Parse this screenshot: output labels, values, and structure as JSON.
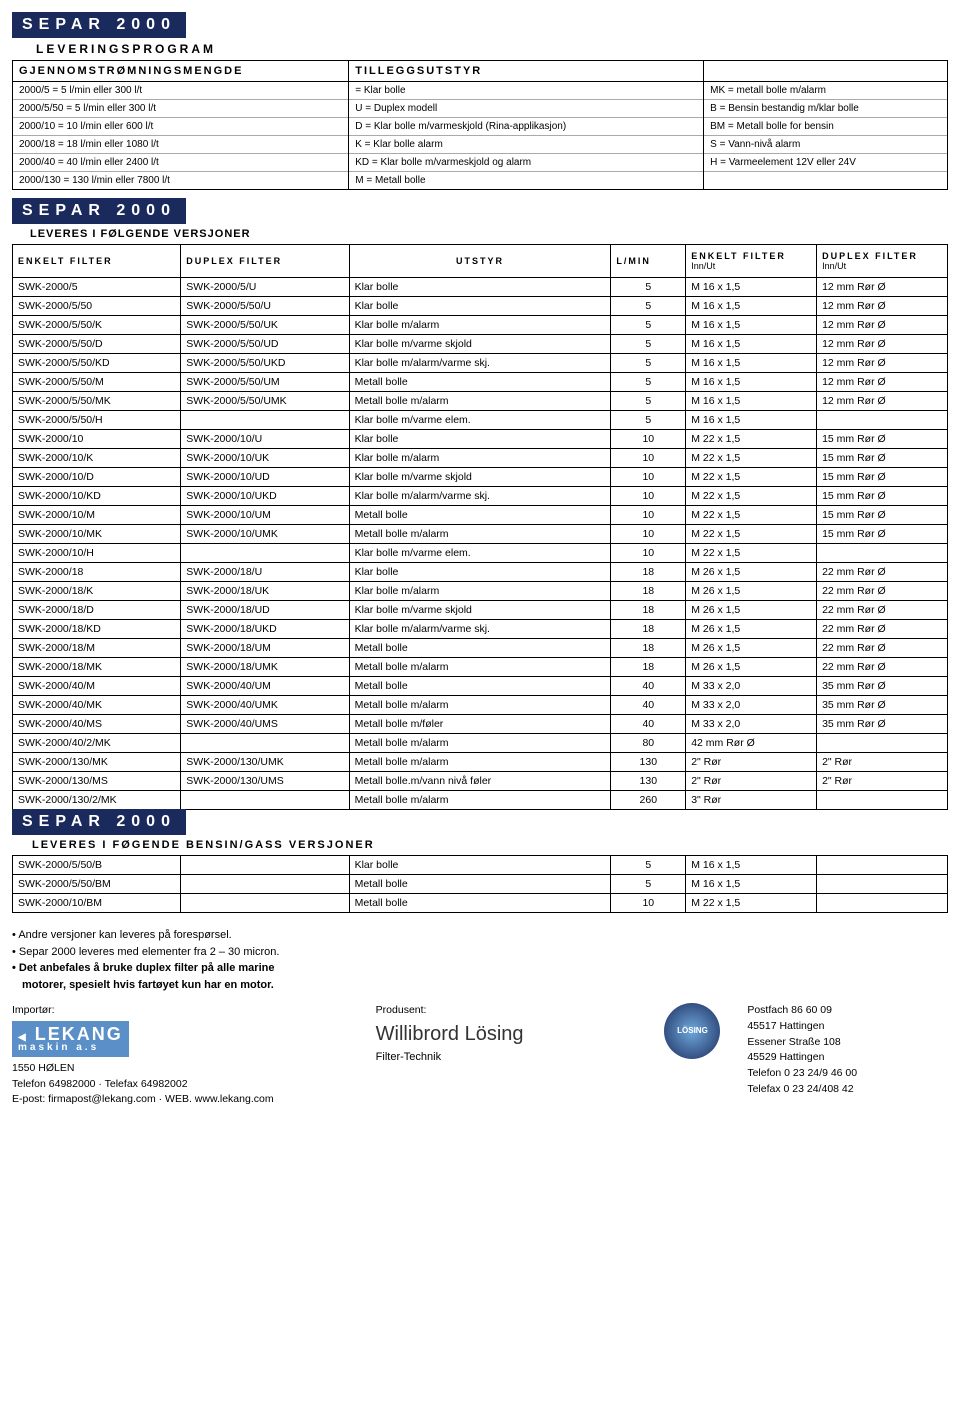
{
  "brand": "SEPAR 2000",
  "colors": {
    "navy": "#1a2a5c",
    "logo_blue": "#5a8fc7"
  },
  "top": {
    "col1": {
      "hdr": "GJENNOMSTRØMNINGSMENGDE",
      "rows": [
        "2000/5    =   5 l/min eller   300 l/t",
        "2000/5/50 =   5 l/min eller   300 l/t",
        "2000/10   =  10 l/min eller   600 l/t",
        "2000/18   =  18 l/min eller  1080 l/t",
        "2000/40   =  40 l/min eller  2400 l/t",
        "2000/130  = 130 l/min eller  7800 l/t"
      ]
    },
    "col2": {
      "hdr": "TILLEGGSUTSTYR",
      "rows": [
        "= Klar bolle",
        "U  = Duplex modell",
        "D  = Klar bolle m/varmeskjold (Rina-applikasjon)",
        "K  = Klar bolle alarm",
        "KD = Klar bolle m/varmeskjold og alarm",
        "M  = Metall bolle"
      ]
    },
    "col3": {
      "hdr": "",
      "rows": [
        "MK = metall bolle m/alarm",
        "B  = Bensin bestandig m/klar bolle",
        "BM = Metall bolle for bensin",
        "S  = Vann-nivå alarm",
        "H  = Varmeelement 12V eller 24V",
        ""
      ]
    }
  },
  "leveringsprogram": "LEVERINGSPROGRAM",
  "versjoner": "LEVERES I FØLGENDE VERSJONER",
  "headers": {
    "c1": "ENKELT FILTER",
    "c2": "DUPLEX FILTER",
    "c3": "UTSTYR",
    "c4": "L/MIN",
    "c5": "ENKELT FILTER",
    "c5s": "Inn/Ut",
    "c6": "DUPLEX FILTER",
    "c6s": "Inn/Ut"
  },
  "rows": [
    [
      "SWK-2000/5",
      "SWK-2000/5/U",
      "Klar bolle",
      "5",
      "M 16 x 1,5",
      "12 mm Rør Ø"
    ],
    [
      "SWK-2000/5/50",
      "SWK-2000/5/50/U",
      "Klar bolle",
      "5",
      "M 16 x 1,5",
      "12 mm Rør Ø"
    ],
    [
      "SWK-2000/5/50/K",
      "SWK-2000/5/50/UK",
      "Klar bolle m/alarm",
      "5",
      "M 16 x 1,5",
      "12 mm Rør Ø"
    ],
    [
      "SWK-2000/5/50/D",
      "SWK-2000/5/50/UD",
      "Klar bolle m/varme skjold",
      "5",
      "M 16 x 1,5",
      "12 mm Rør Ø"
    ],
    [
      "SWK-2000/5/50/KD",
      "SWK-2000/5/50/UKD",
      "Klar bolle m/alarm/varme skj.",
      "5",
      "M 16 x 1,5",
      "12 mm Rør Ø"
    ],
    [
      "SWK-2000/5/50/M",
      "SWK-2000/5/50/UM",
      "Metall bolle",
      "5",
      "M 16 x 1,5",
      "12 mm Rør Ø"
    ],
    [
      "SWK-2000/5/50/MK",
      "SWK-2000/5/50/UMK",
      "Metall bolle m/alarm",
      "5",
      "M 16 x 1,5",
      "12 mm Rør Ø"
    ],
    [
      "SWK-2000/5/50/H",
      "",
      "Klar bolle m/varme elem.",
      "5",
      "M 16 x 1,5",
      ""
    ],
    [
      "SWK-2000/10",
      "SWK-2000/10/U",
      "Klar bolle",
      "10",
      "M 22 x 1,5",
      "15 mm Rør Ø"
    ],
    [
      "SWK-2000/10/K",
      "SWK-2000/10/UK",
      "Klar bolle m/alarm",
      "10",
      "M 22 x 1,5",
      "15 mm Rør Ø"
    ],
    [
      "SWK-2000/10/D",
      "SWK-2000/10/UD",
      "Klar bolle m/varme skjold",
      "10",
      "M 22 x 1,5",
      "15 mm Rør Ø"
    ],
    [
      "SWK-2000/10/KD",
      "SWK-2000/10/UKD",
      "Klar bolle m/alarm/varme skj.",
      "10",
      "M 22 x 1,5",
      "15 mm Rør Ø"
    ],
    [
      "SWK-2000/10/M",
      "SWK-2000/10/UM",
      "Metall bolle",
      "10",
      "M 22 x 1,5",
      "15 mm Rør Ø"
    ],
    [
      "SWK-2000/10/MK",
      "SWK-2000/10/UMK",
      "Metall bolle m/alarm",
      "10",
      "M 22 x 1,5",
      "15 mm Rør Ø"
    ],
    [
      "SWK-2000/10/H",
      "",
      "Klar bolle m/varme elem.",
      "10",
      "M 22 x 1,5",
      ""
    ],
    [
      "SWK-2000/18",
      "SWK-2000/18/U",
      "Klar bolle",
      "18",
      "M 26 x 1,5",
      "22 mm Rør Ø"
    ],
    [
      "SWK-2000/18/K",
      "SWK-2000/18/UK",
      "Klar bolle m/alarm",
      "18",
      "M 26 x 1,5",
      "22 mm Rør Ø"
    ],
    [
      "SWK-2000/18/D",
      "SWK-2000/18/UD",
      "Klar bolle m/varme skjold",
      "18",
      "M 26 x 1,5",
      "22 mm Rør Ø"
    ],
    [
      "SWK-2000/18/KD",
      "SWK-2000/18/UKD",
      "Klar bolle m/alarm/varme skj.",
      "18",
      "M 26 x 1,5",
      "22 mm Rør Ø"
    ],
    [
      "SWK-2000/18/M",
      "SWK-2000/18/UM",
      "Metall bolle",
      "18",
      "M 26 x 1,5",
      "22 mm Rør Ø"
    ],
    [
      "SWK-2000/18/MK",
      "SWK-2000/18/UMK",
      "Metall bolle m/alarm",
      "18",
      "M 26 x 1,5",
      "22 mm Rør Ø"
    ],
    [
      "SWK-2000/40/M",
      "SWK-2000/40/UM",
      "Metall bolle",
      "40",
      "M 33 x 2,0",
      "35 mm Rør Ø"
    ],
    [
      "SWK-2000/40/MK",
      "SWK-2000/40/UMK",
      "Metall bolle m/alarm",
      "40",
      "M 33 x 2,0",
      "35 mm Rør Ø"
    ],
    [
      "SWK-2000/40/MS",
      "SWK-2000/40/UMS",
      "Metall bolle m/føler",
      "40",
      "M 33 x 2,0",
      "35 mm Rør Ø"
    ],
    [
      "SWK-2000/40/2/MK",
      "",
      "Metall bolle m/alarm",
      "80",
      "42 mm Rør Ø",
      ""
    ],
    [
      "SWK-2000/130/MK",
      "SWK-2000/130/UMK",
      "Metall bolle m/alarm",
      "130",
      "2\" Rør",
      "2\" Rør"
    ],
    [
      "SWK-2000/130/MS",
      "SWK-2000/130/UMS",
      "Metall bolle.m/vann nivå føler",
      "130",
      "2\" Rør",
      "2\" Rør"
    ],
    [
      "SWK-2000/130/2/MK",
      "",
      "Metall bolle m/alarm",
      "260",
      "3\" Rør",
      ""
    ]
  ],
  "bensin_hdr": "LEVERES I FØGENDE BENSIN/GASS VERSJONER",
  "bensin_rows": [
    [
      "SWK-2000/5/50/B",
      "",
      "Klar bolle",
      "5",
      "M 16 x 1,5",
      ""
    ],
    [
      "SWK-2000/5/50/BM",
      "",
      "Metall bolle",
      "5",
      "M 16 x 1,5",
      ""
    ],
    [
      "SWK-2000/10/BM",
      "",
      "Metall bolle",
      "10",
      "M 22 x 1,5",
      ""
    ]
  ],
  "notes": [
    "Andre versjoner kan leveres på forespørsel.",
    "Separ 2000 leveres med elementer fra 2 – 30 micron."
  ],
  "note_bold1": "Det anbefales å bruke duplex filter på alle marine",
  "note_bold2": "motorer, spesielt hvis fartøyet kun har en motor.",
  "importer": {
    "label": "Importør:",
    "logo1": "LEKANG",
    "logo2": "maskin a.s",
    "addr": "1550 HØLEN",
    "tel": "Telefon 64982000 · Telefax 64982002",
    "mail": "E-post: firmapost@lekang.com · WEB. www.lekang.com"
  },
  "producer": {
    "label": "Produsent:",
    "name": "Willibrord Lösing",
    "sub": "Filter-Technik"
  },
  "addr2": {
    "l1": "Postfach 86 60 09",
    "l2": "45517 Hattingen",
    "l3": "Essener Straße 108",
    "l4": "45529 Hattingen",
    "l5": "Telefon 0 23 24/9 46 00",
    "l6": "Telefax 0 23 24/408 42"
  }
}
